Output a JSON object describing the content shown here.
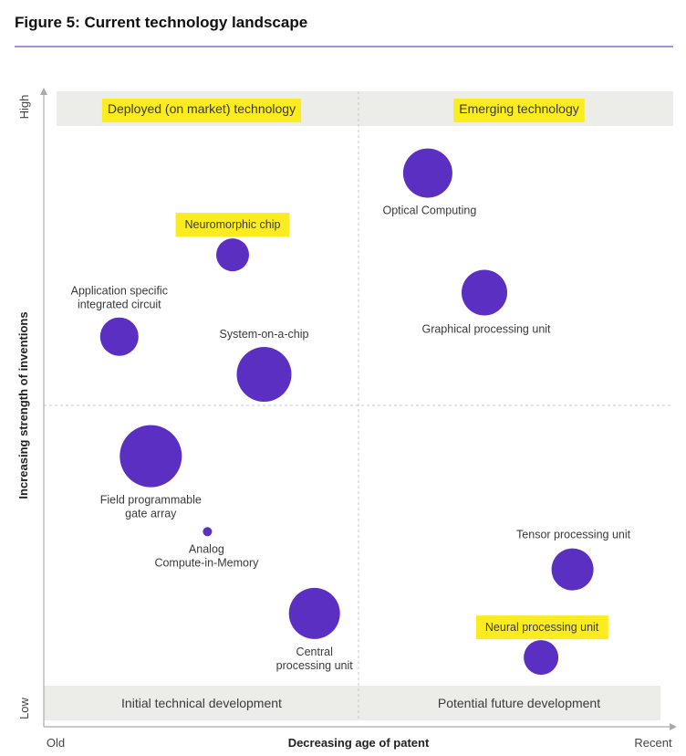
{
  "chart_data": {
    "type": "scatter",
    "title": "Figure 5: Current technology landscape",
    "xlabel": "Decreasing age of patent",
    "ylabel": "Increasing strength of inventions",
    "x_ticks": {
      "min_label": "Old",
      "max_label": "Recent"
    },
    "y_ticks": {
      "min_label": "Low",
      "max_label": "High"
    },
    "quadrant_labels": {
      "top_left": "Deployed (on market) technology",
      "top_right": "Emerging technology",
      "bottom_left": "Initial technical development",
      "bottom_right": "Potential future development"
    },
    "points": [
      {
        "name": "Optical Computing",
        "label_lines": [
          "Optical Computing"
        ],
        "x": 0.61,
        "y": 0.87,
        "size": 27,
        "highlight": false
      },
      {
        "name": "Neuromorphic chip",
        "label_lines": [
          "Neuromorphic chip"
        ],
        "x": 0.3,
        "y": 0.74,
        "size": 18,
        "highlight": true
      },
      {
        "name": "Graphical processing unit",
        "label_lines": [
          "Graphical processing unit"
        ],
        "x": 0.7,
        "y": 0.68,
        "size": 25,
        "highlight": false
      },
      {
        "name": "Application specific integrated circuit",
        "label_lines": [
          "Application specific",
          "integrated circuit"
        ],
        "x": 0.12,
        "y": 0.61,
        "size": 21,
        "highlight": false
      },
      {
        "name": "System-on-a-chip",
        "label_lines": [
          "System-on-a-chip"
        ],
        "x": 0.35,
        "y": 0.55,
        "size": 30,
        "highlight": false
      },
      {
        "name": "Field programmable gate array",
        "label_lines": [
          "Field programmable",
          "gate array"
        ],
        "x": 0.17,
        "y": 0.42,
        "size": 34,
        "highlight": false
      },
      {
        "name": "Analog Compute-in-Memory",
        "label_lines": [
          "Analog",
          "Compute-in-Memory"
        ],
        "x": 0.26,
        "y": 0.3,
        "size": 5,
        "highlight": false
      },
      {
        "name": "Tensor processing unit",
        "label_lines": [
          "Tensor processing unit"
        ],
        "x": 0.84,
        "y": 0.24,
        "size": 23,
        "highlight": false
      },
      {
        "name": "Central processing unit",
        "label_lines": [
          "Central",
          "processing unit"
        ],
        "x": 0.43,
        "y": 0.17,
        "size": 28,
        "highlight": false
      },
      {
        "name": "Neural processing unit",
        "label_lines": [
          "Neural processing unit"
        ],
        "x": 0.79,
        "y": 0.1,
        "size": 19,
        "highlight": true
      }
    ],
    "colors": {
      "bubble": "#5b2fc2",
      "highlight": "#fbec1f",
      "band": "#ecede8",
      "rule": "#8e6bd0",
      "grid": "#c8c8c8",
      "axis": "#aaaaaa"
    }
  }
}
